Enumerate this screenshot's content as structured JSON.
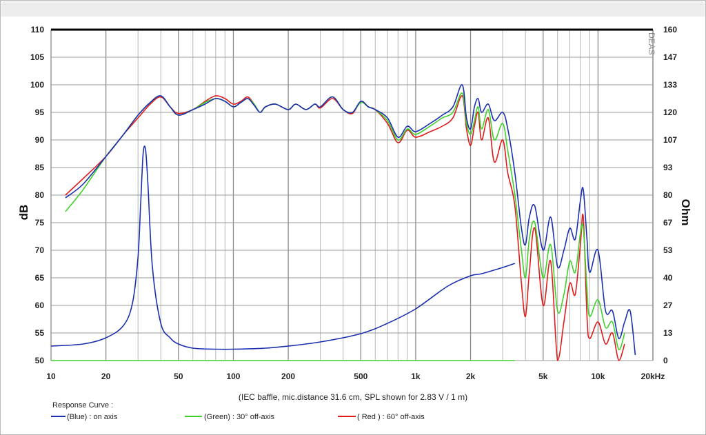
{
  "chart_data": {
    "type": "line",
    "xscale": "log",
    "xlim": [
      10,
      20000
    ],
    "x_ticks": [
      {
        "v": 10,
        "label": "10"
      },
      {
        "v": 20,
        "label": "20"
      },
      {
        "v": 50,
        "label": "50"
      },
      {
        "v": 100,
        "label": "100"
      },
      {
        "v": 200,
        "label": "200"
      },
      {
        "v": 500,
        "label": "500"
      },
      {
        "v": 1000,
        "label": "1k"
      },
      {
        "v": 2000,
        "label": "2k"
      },
      {
        "v": 5000,
        "label": "5k"
      },
      {
        "v": 10000,
        "label": "10k"
      },
      {
        "v": 20000,
        "label": "20kHz"
      }
    ],
    "ylabel_left": "dB",
    "ylim_left": [
      50,
      110
    ],
    "y_left_ticks": [
      "50",
      "55",
      "60",
      "65",
      "70",
      "75",
      "80",
      "85",
      "90",
      "95",
      "100",
      "105",
      "110"
    ],
    "ylabel_right": "Ohm",
    "ylim_right": [
      0,
      160
    ],
    "y_right_ticks": [
      "0",
      "13",
      "27",
      "40",
      "53",
      "67",
      "80",
      "93",
      "107",
      "120",
      "133",
      "147",
      "160"
    ],
    "grid": true,
    "note": "(IEC baffle, mic.distance 31.6 cm, SPL shown for 2.83 V / 1 m)",
    "legend": {
      "title": "Response Curve :",
      "entries": [
        {
          "label": "(Blue)  : on axis",
          "color": "#1a2fb0"
        },
        {
          "label": "(Green) : 30° off-axis",
          "color": "#3fd12a"
        },
        {
          "label": "( Red ) : 60° off-axis",
          "color": "#e01b1b"
        }
      ]
    },
    "brand": "DEAS",
    "series": [
      {
        "key": "impedance",
        "axis": "right",
        "color": "#1a2fb0",
        "x": [
          10,
          15,
          20,
          25,
          28,
          30,
          31,
          32,
          33,
          34,
          36,
          40,
          45,
          50,
          60,
          80,
          100,
          150,
          200,
          300,
          500,
          700,
          1000,
          1500,
          2000,
          2300,
          3000,
          3500
        ],
        "y": [
          7,
          8,
          11,
          17,
          28,
          50,
          75,
          100,
          102,
          85,
          45,
          18,
          11,
          8,
          6,
          5.5,
          5.5,
          6,
          7,
          9,
          13,
          18,
          25,
          36,
          41,
          42,
          45,
          47
        ]
      },
      {
        "key": "impedance_baseline",
        "axis": "right",
        "color": "#3fd12a",
        "x": [
          10,
          3500
        ],
        "y": [
          0,
          0
        ]
      },
      {
        "key": "spl_60",
        "axis": "left",
        "color": "#e01b1b",
        "x": [
          12,
          15,
          20,
          25,
          30,
          35,
          40,
          45,
          50,
          60,
          70,
          80,
          90,
          100,
          110,
          120,
          130,
          140,
          150,
          170,
          200,
          220,
          250,
          280,
          300,
          350,
          400,
          450,
          500,
          550,
          600,
          700,
          800,
          900,
          1000,
          1200,
          1400,
          1600,
          1800,
          1900,
          2000,
          2100,
          2200,
          2300,
          2500,
          2700,
          3000,
          3200,
          3500,
          3800,
          4000,
          4200,
          4500,
          5000,
          5500,
          6000,
          6500,
          7000,
          7500,
          8000,
          8300,
          8700,
          9000,
          10000,
          11000,
          12000,
          13000,
          14000
        ],
        "y": [
          80,
          83,
          87,
          91,
          94,
          96.5,
          97.8,
          96,
          94.8,
          95.5,
          97,
          98,
          97.5,
          96.5,
          97,
          97.8,
          96.5,
          95,
          96,
          96.5,
          95.5,
          96.5,
          95.5,
          96.5,
          95.8,
          97.5,
          95.5,
          94.8,
          97,
          96,
          95.5,
          93,
          89.5,
          91.8,
          90.5,
          91.5,
          92.5,
          94,
          98,
          92,
          89,
          92.5,
          95,
          90,
          94,
          86,
          90,
          84,
          78,
          64,
          58,
          66,
          74,
          60,
          68,
          50,
          57,
          64,
          62,
          71,
          76,
          58,
          54,
          57,
          53,
          55,
          50,
          53
        ]
      },
      {
        "key": "spl_30",
        "axis": "left",
        "color": "#3fd12a",
        "x": [
          12,
          15,
          20,
          25,
          30,
          35,
          40,
          45,
          50,
          60,
          70,
          80,
          90,
          100,
          110,
          120,
          130,
          140,
          150,
          170,
          200,
          220,
          250,
          280,
          300,
          350,
          400,
          450,
          500,
          550,
          600,
          700,
          800,
          900,
          1000,
          1200,
          1400,
          1600,
          1800,
          1900,
          2000,
          2100,
          2200,
          2300,
          2500,
          2700,
          3000,
          3200,
          3500,
          3800,
          4000,
          4200,
          4500,
          5000,
          5500,
          6000,
          6500,
          7000,
          7500,
          8000,
          8300,
          8700,
          9000,
          10000,
          11000,
          12000,
          13000,
          14000
        ],
        "y": [
          77,
          81,
          87,
          91,
          94.5,
          96.8,
          98,
          96,
          94.5,
          95.5,
          96.8,
          97.5,
          97,
          96,
          96.8,
          97.5,
          96.5,
          95,
          96,
          96.5,
          95.5,
          96.5,
          95.5,
          96.5,
          96,
          97.8,
          95.5,
          95,
          96.8,
          96,
          95.5,
          93.5,
          90,
          92,
          91,
          92.5,
          94,
          95,
          98.5,
          93,
          91,
          93.5,
          96,
          92,
          95.5,
          90,
          93,
          88,
          80,
          70,
          65,
          72,
          75,
          65,
          71,
          59,
          62,
          68,
          66,
          73,
          74,
          63,
          58,
          61,
          56,
          57,
          52,
          55
        ]
      },
      {
        "key": "spl_0",
        "axis": "left",
        "color": "#1a2fb0",
        "x": [
          12,
          15,
          20,
          25,
          30,
          35,
          40,
          45,
          50,
          60,
          70,
          80,
          90,
          100,
          110,
          120,
          130,
          140,
          150,
          170,
          200,
          220,
          250,
          280,
          300,
          350,
          400,
          450,
          500,
          550,
          600,
          700,
          800,
          900,
          1000,
          1200,
          1400,
          1600,
          1800,
          1900,
          2000,
          2100,
          2200,
          2300,
          2500,
          2700,
          3000,
          3200,
          3500,
          3800,
          4000,
          4200,
          4500,
          5000,
          5500,
          6000,
          6500,
          7000,
          7500,
          8000,
          8300,
          8700,
          9000,
          10000,
          11000,
          12000,
          13000,
          14000,
          15000,
          16000
        ],
        "y": [
          79.5,
          82,
          87,
          91,
          94.5,
          96.8,
          98,
          96,
          94.5,
          95.5,
          96.5,
          97.5,
          97,
          96,
          96.8,
          97.5,
          96.3,
          95,
          96,
          96.5,
          95.5,
          96.5,
          95.5,
          96.5,
          96,
          97.8,
          95.5,
          95,
          97,
          96,
          95.5,
          94,
          90.5,
          92.5,
          91.5,
          93,
          94.5,
          96,
          100,
          94,
          92,
          96,
          97.5,
          95,
          96.5,
          93.5,
          95,
          92,
          84,
          74,
          71,
          76,
          78,
          70,
          76,
          67,
          70,
          74,
          72,
          79,
          81,
          72,
          66,
          70,
          59,
          59,
          54,
          57,
          59,
          51
        ]
      }
    ]
  }
}
